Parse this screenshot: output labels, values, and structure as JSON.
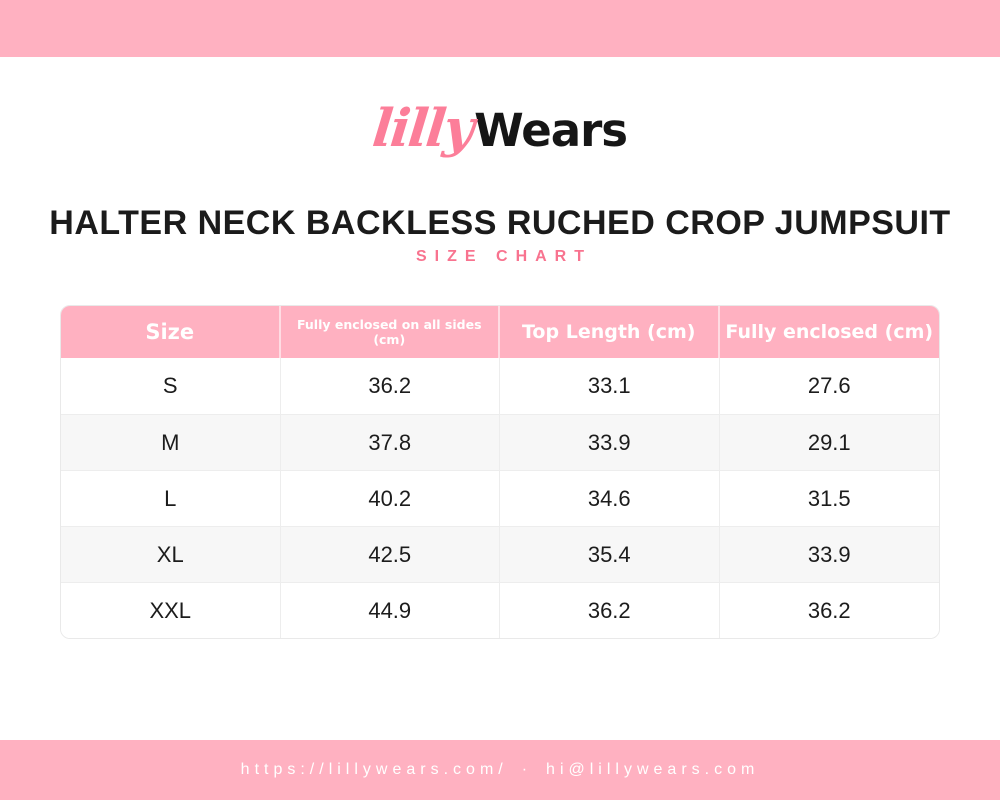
{
  "colors": {
    "banner_pink": "#ffb1c1",
    "accent_pink": "#f8738f",
    "logo_pink": "#fc7e99",
    "logo_black": "#161616",
    "row_alt_gray": "#f7f7f7",
    "text_dark": "#1c1c1c",
    "header_text": "#ffffff"
  },
  "logo": {
    "part1": "lilly",
    "part2": "Wears"
  },
  "title": "HALTER NECK BACKLESS RUCHED CROP JUMPSUIT",
  "subtitle": "SIZE CHART",
  "size_chart": {
    "columns": [
      "Size",
      "Fully enclosed on all sides (cm)",
      "Top Length (cm)",
      "Fully enclosed (cm)"
    ],
    "rows": [
      {
        "size": "S",
        "values": [
          "36.2",
          "33.1",
          "27.6"
        ]
      },
      {
        "size": "M",
        "values": [
          "37.8",
          "33.9",
          "29.1"
        ]
      },
      {
        "size": "L",
        "values": [
          "40.2",
          "34.6",
          "31.5"
        ]
      },
      {
        "size": "XL",
        "values": [
          "42.5",
          "35.4",
          "33.9"
        ]
      },
      {
        "size": "XXL",
        "values": [
          "44.9",
          "36.2",
          "36.2"
        ]
      }
    ]
  },
  "footer": {
    "url": "https://lillywears.com/",
    "separator": "·",
    "email": "hi@lillywears.com"
  }
}
